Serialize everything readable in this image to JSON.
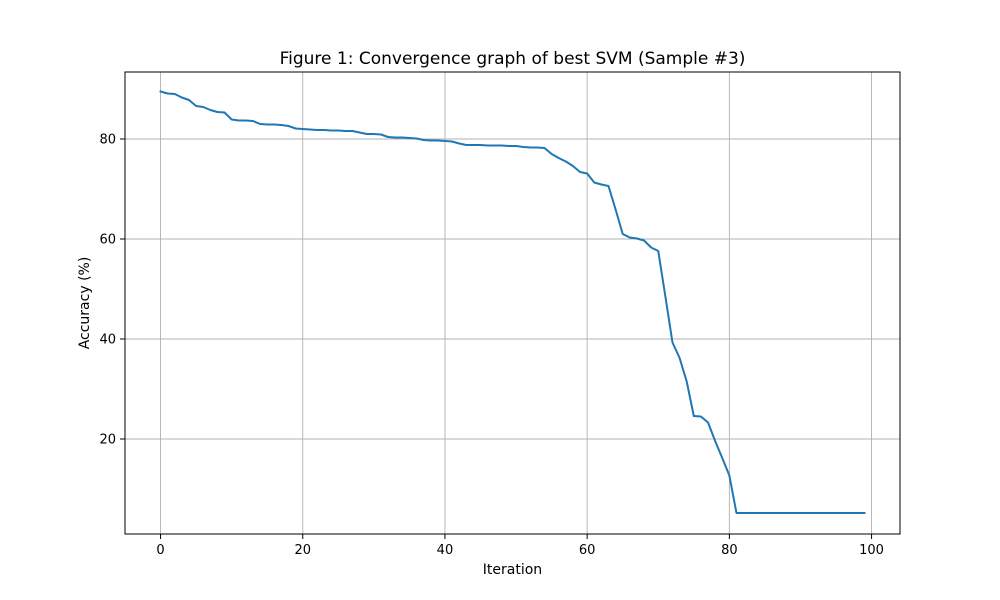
{
  "chart_data": {
    "type": "line",
    "title": "Figure 1: Convergence graph of best SVM (Sample #3)",
    "xlabel": "Iteration",
    "ylabel": "Accuracy (%)",
    "xlim": [
      -5,
      104
    ],
    "ylim": [
      1,
      93.4
    ],
    "xticks": [
      0,
      20,
      40,
      60,
      80,
      100
    ],
    "yticks": [
      20,
      40,
      60,
      80
    ],
    "grid": true,
    "series": [
      {
        "name": "Accuracy",
        "color": "#1f77b4",
        "x": [
          0,
          1,
          2,
          3,
          4,
          5,
          6,
          7,
          8,
          9,
          10,
          11,
          12,
          13,
          14,
          15,
          16,
          17,
          18,
          19,
          20,
          21,
          22,
          23,
          24,
          25,
          26,
          27,
          28,
          29,
          30,
          31,
          32,
          33,
          34,
          35,
          36,
          37,
          38,
          39,
          40,
          41,
          42,
          43,
          44,
          45,
          46,
          47,
          48,
          49,
          50,
          51,
          52,
          53,
          54,
          55,
          56,
          57,
          58,
          59,
          60,
          61,
          62,
          63,
          64,
          65,
          66,
          67,
          68,
          69,
          70,
          71,
          72,
          73,
          74,
          75,
          76,
          77,
          78,
          79,
          80,
          81,
          82,
          83,
          84,
          85,
          86,
          87,
          88,
          89,
          90,
          91,
          92,
          93,
          94,
          95,
          96,
          97,
          98,
          99
        ],
        "values": [
          89.5,
          89.1,
          89.0,
          88.3,
          87.8,
          86.6,
          86.4,
          85.8,
          85.4,
          85.3,
          83.9,
          83.7,
          83.7,
          83.6,
          83.0,
          82.9,
          82.9,
          82.8,
          82.6,
          82.1,
          82.0,
          81.9,
          81.8,
          81.8,
          81.7,
          81.7,
          81.6,
          81.6,
          81.3,
          81.0,
          81.0,
          80.9,
          80.4,
          80.3,
          80.3,
          80.2,
          80.1,
          79.8,
          79.7,
          79.7,
          79.6,
          79.5,
          79.1,
          78.8,
          78.8,
          78.8,
          78.7,
          78.7,
          78.7,
          78.6,
          78.6,
          78.4,
          78.3,
          78.3,
          78.2,
          77.0,
          76.2,
          75.5,
          74.6,
          73.4,
          73.1,
          71.3,
          70.9,
          70.6,
          65.9,
          61.0,
          60.3,
          60.1,
          59.7,
          58.3,
          57.6,
          48.5,
          39.3,
          36.2,
          31.5,
          24.6,
          24.5,
          23.3,
          19.6,
          16.2,
          12.7,
          5.2,
          5.2,
          5.2,
          5.2,
          5.2,
          5.2,
          5.2,
          5.2,
          5.2,
          5.2,
          5.2,
          5.2,
          5.2,
          5.2,
          5.2,
          5.2,
          5.2,
          5.2,
          5.2
        ]
      }
    ]
  }
}
